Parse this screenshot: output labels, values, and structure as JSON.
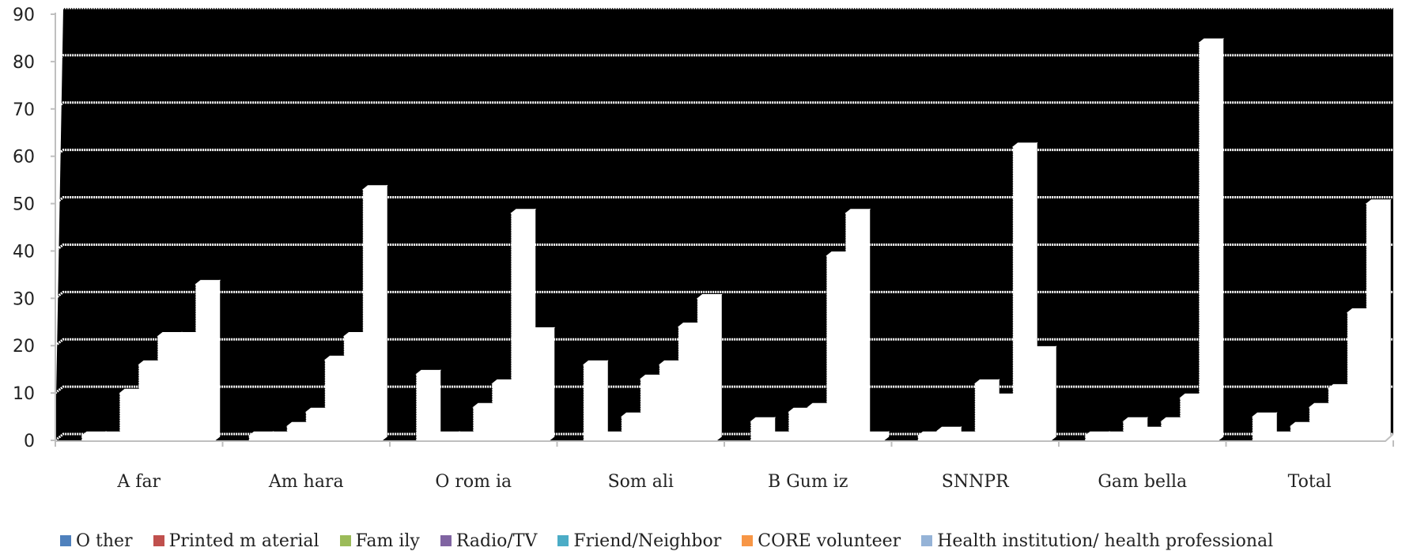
{
  "chart_data": {
    "type": "bar",
    "title": "",
    "xlabel": "",
    "ylabel": "",
    "ylim": [
      0,
      90
    ],
    "yticks": [
      0,
      10,
      20,
      30,
      40,
      50,
      60,
      70,
      80,
      90
    ],
    "grid": true,
    "legend_position": "bottom",
    "plot_background": "#000000",
    "categories": [
      "Afar",
      "Amhara",
      "Oromia",
      "Somali",
      "BGumiz",
      "SNNPR",
      "Gambella",
      "Total"
    ],
    "category_labels": [
      "A far",
      "Am hara",
      "O rom ia",
      "Som ali",
      "B Gum iz",
      "SNNPR",
      "Gam bella",
      "Total"
    ],
    "series": [
      {
        "name": "O ther",
        "color": "#4f81bd",
        "values": [
          1,
          1,
          14,
          16,
          4,
          1,
          1,
          5
        ]
      },
      {
        "name": "Printed m aterial",
        "color": "#c0504d",
        "values": [
          1,
          1,
          1,
          1,
          1,
          2,
          1,
          1
        ]
      },
      {
        "name": "Fam ily",
        "color": "#9bbb59",
        "values": [
          10,
          3,
          1,
          5,
          6,
          1,
          4,
          3
        ]
      },
      {
        "name": "Radio/TV",
        "color": "#8064a2",
        "values": [
          16,
          6,
          7,
          13,
          7,
          12,
          2,
          7
        ]
      },
      {
        "name": "Friend/Neighbor",
        "color": "#4bacc6",
        "values": [
          22,
          17,
          12,
          16,
          39,
          9,
          4,
          11
        ]
      },
      {
        "name": "CORE volunteer",
        "color": "#f79646",
        "values": [
          22,
          22,
          48,
          24,
          48,
          62,
          9,
          27
        ]
      },
      {
        "name": "Health institution/ health professional",
        "color": "#95b3d7",
        "values": [
          33,
          53,
          23,
          30,
          1,
          19,
          84,
          50
        ]
      }
    ]
  }
}
